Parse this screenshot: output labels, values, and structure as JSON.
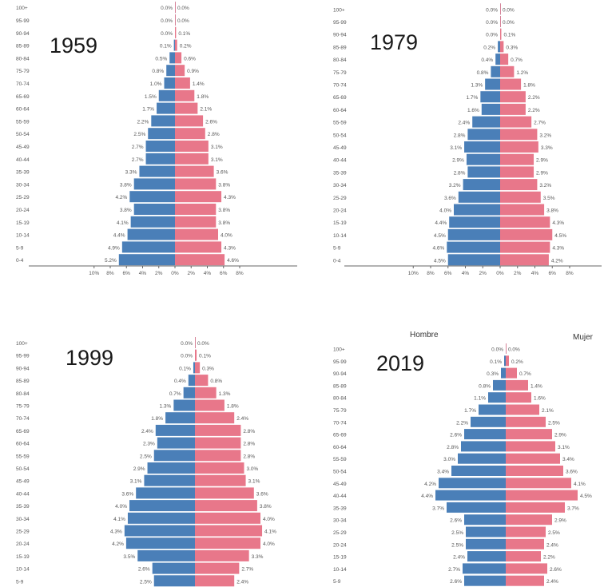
{
  "colors": {
    "male": "#4a7fb8",
    "female": "#e8778a",
    "axis": "#666666",
    "label": "#555555"
  },
  "panels": [
    {
      "year": "1959",
      "legend_male": "",
      "legend_female": ""
    },
    {
      "year": "1979",
      "legend_male": "",
      "legend_female": ""
    },
    {
      "year": "1999",
      "legend_male": "",
      "legend_female": ""
    },
    {
      "year": "2019",
      "legend_male": "Hombre",
      "legend_female": "Mujer"
    }
  ],
  "chart_data": [
    {
      "type": "bar",
      "title": "1959",
      "age_groups": [
        "0-4",
        "5-9",
        "10-14",
        "15-19",
        "20-24",
        "25-29",
        "30-34",
        "35-39",
        "40-44",
        "45-49",
        "50-54",
        "55-59",
        "60-64",
        "65-69",
        "70-74",
        "75-79",
        "80-84",
        "85-89",
        "90-94",
        "95-99",
        "100+"
      ],
      "series": [
        {
          "values": [
            5.2,
            4.9,
            4.4,
            4.1,
            3.8,
            4.2,
            3.8,
            3.3,
            2.7,
            2.7,
            2.5,
            2.2,
            1.7,
            1.5,
            1.0,
            0.8,
            0.5,
            0.1,
            0.0,
            0.0,
            0.0
          ]
        },
        {
          "values": [
            4.6,
            4.3,
            4.0,
            3.8,
            3.8,
            4.3,
            3.8,
            3.6,
            3.1,
            3.1,
            2.8,
            2.6,
            2.1,
            1.8,
            1.4,
            0.9,
            0.6,
            0.2,
            0.1,
            0.0,
            0.0
          ]
        }
      ],
      "xlim": [
        -8,
        8
      ],
      "xticks": [
        "10%",
        "8%",
        "6%",
        "4%",
        "2%",
        "0%",
        "2%",
        "4%",
        "6%",
        "8%"
      ]
    },
    {
      "type": "bar",
      "title": "1979",
      "age_groups": [
        "0-4",
        "5-9",
        "10-14",
        "15-19",
        "20-24",
        "25-29",
        "30-34",
        "35-39",
        "40-44",
        "45-49",
        "50-54",
        "55-59",
        "60-64",
        "65-69",
        "70-74",
        "75-79",
        "80-84",
        "85-89",
        "90-94",
        "95-99",
        "100+"
      ],
      "series": [
        {
          "values": [
            4.5,
            4.6,
            4.5,
            4.4,
            4.0,
            3.6,
            3.2,
            2.8,
            2.9,
            3.1,
            2.8,
            2.4,
            1.6,
            1.7,
            1.3,
            0.8,
            0.4,
            0.2,
            0.0,
            0.0,
            0.0
          ]
        },
        {
          "values": [
            4.2,
            4.3,
            4.5,
            4.3,
            3.8,
            3.5,
            3.2,
            2.9,
            2.9,
            3.3,
            3.2,
            2.7,
            2.2,
            2.2,
            1.8,
            1.2,
            0.7,
            0.3,
            0.1,
            0.0,
            0.0
          ]
        }
      ],
      "xlim": [
        -8,
        8
      ],
      "xticks": [
        "10%",
        "8%",
        "6%",
        "4%",
        "2%",
        "0%",
        "2%",
        "4%",
        "6%",
        "8%"
      ]
    },
    {
      "type": "bar",
      "title": "1999",
      "age_groups": [
        "5-9",
        "10-14",
        "15-19",
        "20-24",
        "25-29",
        "30-34",
        "35-39",
        "40-44",
        "45-49",
        "50-54",
        "55-59",
        "60-64",
        "65-69",
        "70-74",
        "75-79",
        "80-84",
        "85-89",
        "90-94",
        "95-99",
        "100+"
      ],
      "series": [
        {
          "values": [
            2.5,
            2.6,
            3.5,
            4.2,
            4.3,
            4.1,
            4.0,
            3.6,
            3.1,
            2.9,
            2.5,
            2.3,
            2.4,
            1.8,
            1.3,
            0.7,
            0.4,
            0.1,
            0.0,
            0.0
          ]
        },
        {
          "values": [
            2.4,
            2.7,
            3.3,
            4.0,
            4.1,
            4.0,
            3.8,
            3.6,
            3.1,
            3.0,
            2.8,
            2.8,
            2.8,
            2.4,
            1.8,
            1.3,
            0.8,
            0.3,
            0.1,
            0.0
          ]
        }
      ],
      "xlim": [
        -6.5,
        6.5
      ]
    },
    {
      "type": "bar",
      "title": "2019",
      "age_groups": [
        "5-9",
        "10-14",
        "15-19",
        "20-24",
        "25-29",
        "30-34",
        "35-39",
        "40-44",
        "45-49",
        "50-54",
        "55-59",
        "60-64",
        "65-69",
        "70-74",
        "75-79",
        "80-84",
        "85-89",
        "90-94",
        "95-99",
        "100+"
      ],
      "series": [
        {
          "name": "Hombre",
          "values": [
            2.6,
            2.7,
            2.4,
            2.5,
            2.5,
            2.6,
            3.7,
            4.4,
            4.2,
            3.4,
            3.0,
            2.8,
            2.6,
            2.2,
            1.7,
            1.1,
            0.8,
            0.3,
            0.1,
            0.0
          ]
        },
        {
          "name": "Mujer",
          "values": [
            2.4,
            2.6,
            2.2,
            2.4,
            2.5,
            2.9,
            3.7,
            4.5,
            4.1,
            3.6,
            3.4,
            3.1,
            2.9,
            2.5,
            2.1,
            1.6,
            1.4,
            0.7,
            0.2,
            0.0
          ]
        }
      ],
      "xlim": [
        -6.5,
        6.5
      ]
    }
  ]
}
